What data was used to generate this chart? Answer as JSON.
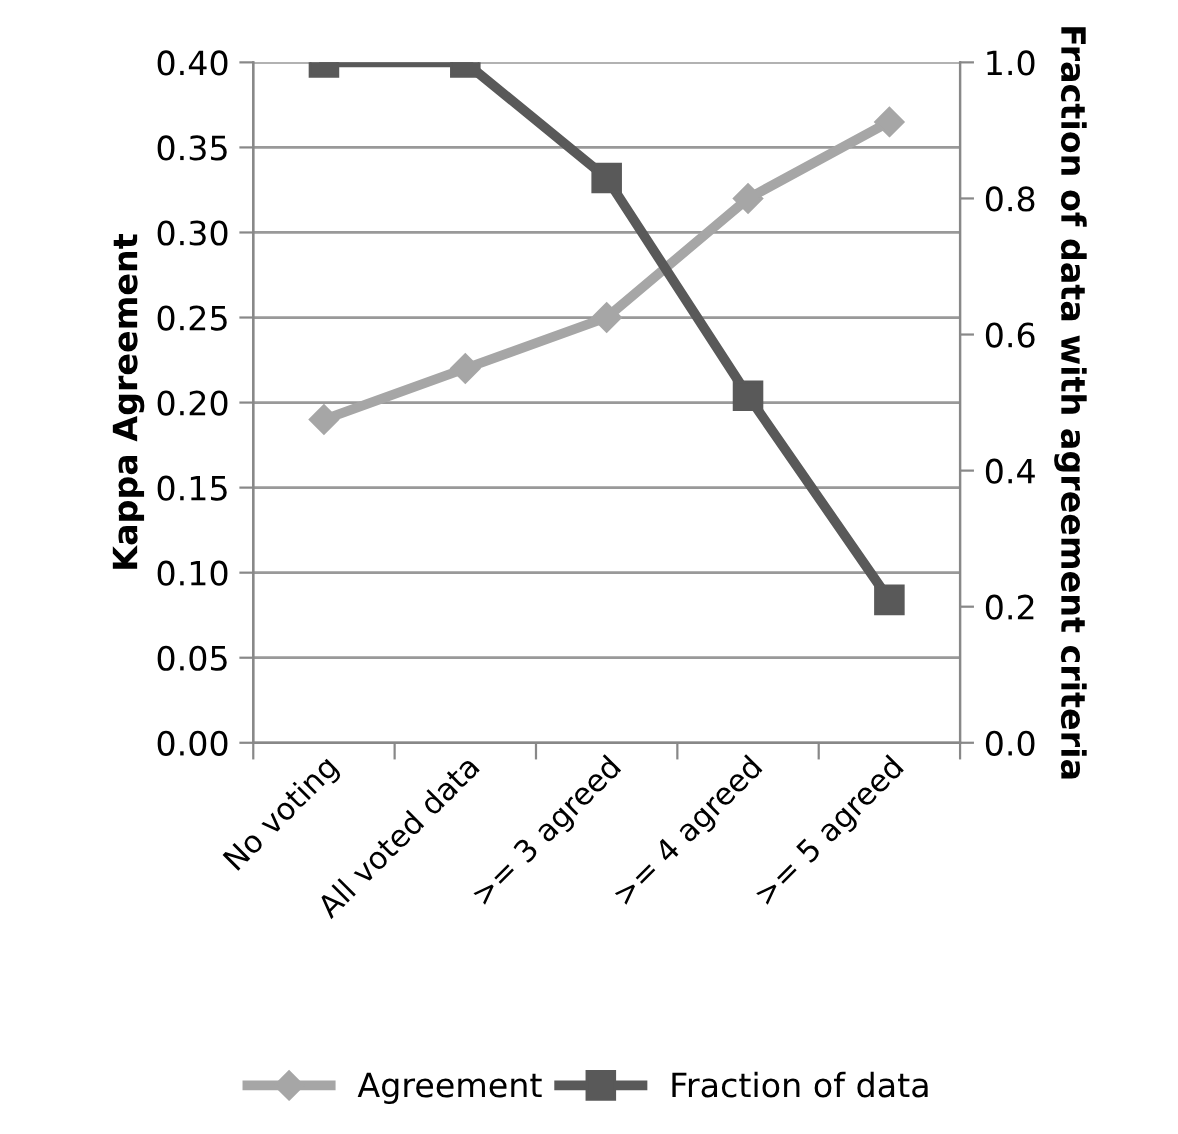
{
  "chart_data": {
    "type": "line",
    "ylabel": "Kappa Agreement",
    "y2label": "Fraction of data with agreement criteria",
    "categories": [
      "No voting",
      "All voted data",
      ">= 3 agreed",
      ">= 4 agreed",
      ">= 5 agreed"
    ],
    "series": [
      {
        "name": "Agreement",
        "color": "#a6a6a6",
        "marker": "diamond",
        "values": [
          0.19,
          0.22,
          0.25,
          0.32,
          0.365
        ]
      },
      {
        "name": "Fraction of data",
        "color": "#595959",
        "marker": "square",
        "axis": "y2",
        "values": [
          1.0,
          1.0,
          0.83,
          0.51,
          0.21
        ]
      }
    ],
    "ylim": [
      0,
      0.4
    ],
    "yticks": [
      {
        "value": 0,
        "label": "0.00"
      },
      {
        "value": 0.05,
        "label": "0.05"
      },
      {
        "value": 0.1,
        "label": "0.10"
      },
      {
        "value": 0.15,
        "label": "0.15"
      },
      {
        "value": 0.2,
        "label": "0.20"
      },
      {
        "value": 0.25,
        "label": "0.25"
      },
      {
        "value": 0.3,
        "label": "0.30"
      },
      {
        "value": 0.35,
        "label": "0.35"
      },
      {
        "value": 0.4,
        "label": "0.40"
      }
    ],
    "y2lim": [
      0,
      1
    ],
    "y2ticks": [
      {
        "value": 0,
        "label": "0.0"
      },
      {
        "value": 0.2,
        "label": "0.2"
      },
      {
        "value": 0.4,
        "label": "0.4"
      },
      {
        "value": 0.6,
        "label": "0.6"
      },
      {
        "value": 0.8,
        "label": "0.8"
      },
      {
        "value": 1,
        "label": "1.0"
      }
    ],
    "grid": "y",
    "legend": "bottom",
    "line_style": "solid"
  }
}
